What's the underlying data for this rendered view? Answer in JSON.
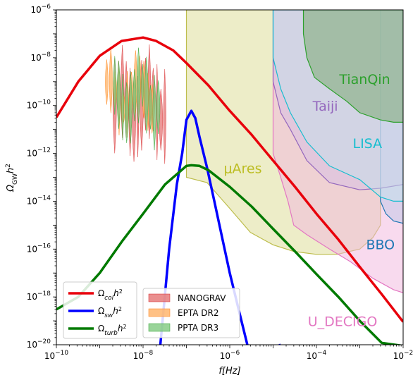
{
  "chart_data": {
    "type": "line",
    "title": "",
    "xlabel": "f[Hz]",
    "ylabel": "Ω_GW h²",
    "x_scale": "log",
    "y_scale": "log",
    "xlim": [
      1e-10,
      0.01
    ],
    "ylim": [
      1e-20,
      1e-06
    ],
    "grid": false,
    "x_ticks": [
      {
        "value": 1e-10,
        "base": "10",
        "exp": "−10"
      },
      {
        "value": 1e-08,
        "base": "10",
        "exp": "−8"
      },
      {
        "value": 1e-06,
        "base": "10",
        "exp": "−6"
      },
      {
        "value": 0.0001,
        "base": "10",
        "exp": "−4"
      },
      {
        "value": 0.01,
        "base": "10",
        "exp": "−2"
      }
    ],
    "y_ticks": [
      {
        "value": 1e-20,
        "base": "10",
        "exp": "−20"
      },
      {
        "value": 1e-18,
        "base": "10",
        "exp": "−18"
      },
      {
        "value": 1e-16,
        "base": "10",
        "exp": "−16"
      },
      {
        "value": 1e-14,
        "base": "10",
        "exp": "−14"
      },
      {
        "value": 1e-12,
        "base": "10",
        "exp": "−12"
      },
      {
        "value": 1e-10,
        "base": "10",
        "exp": "−10"
      },
      {
        "value": 1e-08,
        "base": "10",
        "exp": "−8"
      },
      {
        "value": 1e-06,
        "base": "10",
        "exp": "−6"
      }
    ],
    "series": [
      {
        "key": "col",
        "name_main": "Ω",
        "name_sub": "col",
        "name_tail": "h",
        "name_sup": "2",
        "color": "#e8000b",
        "points": [
          [
            1e-10,
            3.2e-11
          ],
          [
            3.2e-10,
            1e-09
          ],
          [
            1e-09,
            1.2e-08
          ],
          [
            3.2e-09,
            5e-08
          ],
          [
            1e-08,
            7e-08
          ],
          [
            2e-08,
            5e-08
          ],
          [
            5e-08,
            2e-08
          ],
          [
            1e-07,
            6e-09
          ],
          [
            3.2e-07,
            7e-10
          ],
          [
            1e-06,
            6e-11
          ],
          [
            3.2e-06,
            6e-12
          ],
          [
            1e-05,
            5e-13
          ],
          [
            3.2e-05,
            4e-14
          ],
          [
            0.0001,
            3e-15
          ],
          [
            0.00032,
            2.5e-16
          ],
          [
            0.001,
            1.8e-17
          ],
          [
            0.0032,
            1.3e-18
          ],
          [
            0.01,
            9e-20
          ]
        ]
      },
      {
        "key": "sw",
        "name_main": "Ω",
        "name_sub": "sw",
        "name_tail": "h",
        "name_sup": "2",
        "color": "#0000ff",
        "points": [
          [
            2.5e-08,
            1e-20
          ],
          [
            4e-08,
            1e-16
          ],
          [
            6e-08,
            5e-14
          ],
          [
            8e-08,
            1e-12
          ],
          [
            1e-07,
            2.5e-11
          ],
          [
            1.3e-07,
            6e-11
          ],
          [
            1.6e-07,
            3e-11
          ],
          [
            2e-07,
            5e-12
          ],
          [
            3e-07,
            2.5e-13
          ],
          [
            4.4e-07,
            1e-14
          ],
          [
            7e-07,
            2e-16
          ],
          [
            1e-06,
            1e-17
          ],
          [
            1.6e-06,
            3e-19
          ],
          [
            3e-06,
            3e-21
          ],
          [
            1.5e-05,
            1e-20
          ]
        ]
      },
      {
        "key": "turb",
        "name_main": "Ω",
        "name_sub": "turb",
        "name_tail": "h",
        "name_sup": "2",
        "color": "#007a00",
        "points": [
          [
            1e-10,
            3e-19
          ],
          [
            3.2e-10,
            1e-18
          ],
          [
            1e-09,
            1e-17
          ],
          [
            3.2e-09,
            2e-16
          ],
          [
            1e-08,
            3e-15
          ],
          [
            3.2e-08,
            5e-14
          ],
          [
            1e-07,
            3e-13
          ],
          [
            1.3e-07,
            3.2e-13
          ],
          [
            2e-07,
            3e-13
          ],
          [
            3.2e-07,
            2e-13
          ],
          [
            1e-06,
            4e-14
          ],
          [
            3.2e-06,
            6e-15
          ],
          [
            1e-05,
            7e-16
          ],
          [
            3.2e-05,
            8e-17
          ],
          [
            0.0001,
            9e-18
          ],
          [
            0.00032,
            1e-18
          ],
          [
            0.001,
            1e-19
          ],
          [
            0.0032,
            1.2e-20
          ],
          [
            0.01,
            9e-21
          ]
        ]
      }
    ],
    "detectors": [
      {
        "name": "μAres",
        "fill": "#dede9b",
        "stroke": "#bdbd4c",
        "alpha": 0.55,
        "label_color": "#bcbd22",
        "label_at": [
          2e-06,
          1.5e-13
        ],
        "polygon": [
          [
            1e-07,
            1e-06
          ],
          [
            1e-07,
            1e-13
          ],
          [
            3e-07,
            6e-14
          ],
          [
            1e-06,
            5e-15
          ],
          [
            3e-06,
            5e-16
          ],
          [
            1e-05,
            1.5e-16
          ],
          [
            3e-05,
            8e-17
          ],
          [
            0.0001,
            6e-17
          ],
          [
            0.0003,
            6e-17
          ],
          [
            0.001,
            1e-16
          ],
          [
            0.002,
            3e-16
          ],
          [
            0.003,
            1e-15
          ],
          [
            0.003,
            1e-06
          ]
        ]
      },
      {
        "name": "U_DECIGO",
        "fill": "#f2b5de",
        "stroke": "#e377c2",
        "alpha": 0.5,
        "label_color": "#e377c2",
        "label_at": [
          0.0004,
          6e-20
        ],
        "polygon": [
          [
            1e-05,
            1e-06
          ],
          [
            1e-05,
            1e-12
          ],
          [
            1.5e-05,
            1e-13
          ],
          [
            2.2e-05,
            1e-14
          ],
          [
            3e-05,
            1e-15
          ],
          [
            6e-05,
            4e-16
          ],
          [
            0.0002,
            1e-16
          ],
          [
            0.0006,
            3e-17
          ],
          [
            0.002,
            6e-18
          ],
          [
            0.006,
            2e-18
          ],
          [
            0.01,
            1.5e-18
          ],
          [
            0.01,
            1e-06
          ]
        ]
      },
      {
        "name": "BBO",
        "fill": "#b9c4e5",
        "stroke": "#1f77b4",
        "alpha": 0.45,
        "label_color": "#1f77b4",
        "label_at": [
          0.003,
          1e-16
        ],
        "polygon": [
          [
            0.003,
            1e-06
          ],
          [
            0.003,
            1e-14
          ],
          [
            0.004,
            3e-15
          ],
          [
            0.006,
            1.5e-15
          ],
          [
            0.01,
            1.2e-15
          ],
          [
            0.01,
            1e-06
          ]
        ]
      },
      {
        "name": "Taiji",
        "fill": "#d8bfe3",
        "stroke": "#9467bd",
        "alpha": 0.6,
        "label_color": "#9467bd",
        "label_at": [
          0.00016,
          6e-11
        ],
        "polygon": [
          [
            1e-05,
            1e-06
          ],
          [
            1e-05,
            1e-09
          ],
          [
            1.5e-05,
            5e-11
          ],
          [
            2.5e-05,
            1e-11
          ],
          [
            6e-05,
            5e-13
          ],
          [
            0.0002,
            6e-14
          ],
          [
            0.001,
            3e-14
          ],
          [
            0.003,
            3.5e-14
          ],
          [
            0.01,
            5e-14
          ],
          [
            0.01,
            1e-06
          ]
        ]
      },
      {
        "name": "LISA",
        "fill": "#c1e2eb",
        "stroke": "#17becf",
        "alpha": 0.5,
        "label_color": "#17becf",
        "label_at": [
          0.0015,
          1.7e-12
        ],
        "polygon": [
          [
            1e-05,
            1e-06
          ],
          [
            1e-05,
            1e-08
          ],
          [
            1.5e-05,
            5e-10
          ],
          [
            2.5e-05,
            5e-11
          ],
          [
            6e-05,
            3e-12
          ],
          [
            0.0002,
            3e-13
          ],
          [
            0.001,
            8e-14
          ],
          [
            0.003,
            1.5e-14
          ],
          [
            0.006,
            1e-14
          ],
          [
            0.01,
            1e-14
          ],
          [
            0.01,
            1e-06
          ]
        ]
      },
      {
        "name": "TianQin",
        "fill": "#93b591",
        "stroke": "#2ca02c",
        "alpha": 0.75,
        "label_color": "#2ca02c",
        "label_at": [
          0.0013,
          8e-10
        ],
        "polygon": [
          [
            5e-05,
            1e-06
          ],
          [
            5e-05,
            1e-07
          ],
          [
            6e-05,
            1e-08
          ],
          [
            9e-05,
            1.5e-09
          ],
          [
            0.0002,
            5e-10
          ],
          [
            0.0005,
            1.5e-10
          ],
          [
            0.001,
            5e-11
          ],
          [
            0.003,
            2.5e-11
          ],
          [
            0.006,
            2e-11
          ],
          [
            0.01,
            2e-11
          ],
          [
            0.01,
            1e-06
          ]
        ]
      }
    ],
    "pta": [
      {
        "name": "NANOGRAV",
        "fill": "#e57373",
        "edge": "#d62728",
        "x_range": [
          2e-09,
          3.5e-08
        ],
        "y_center": 1e-10,
        "y_span": [
          1.2,
          2.0
        ],
        "count": 14
      },
      {
        "name": "EPTA DR2",
        "fill": "#ffb166",
        "edge": "#ff7f0e",
        "x_range": [
          1.3e-09,
          1.8e-08
        ],
        "y_center": 3e-10,
        "y_span": [
          0.6,
          1.4
        ],
        "count": 12
      },
      {
        "name": "PPTA DR3",
        "fill": "#7fc97f",
        "edge": "#2ca02c",
        "x_range": [
          2e-09,
          2.5e-08
        ],
        "y_center": 2e-10,
        "y_span": [
          0.8,
          1.6
        ],
        "count": 12
      }
    ]
  }
}
